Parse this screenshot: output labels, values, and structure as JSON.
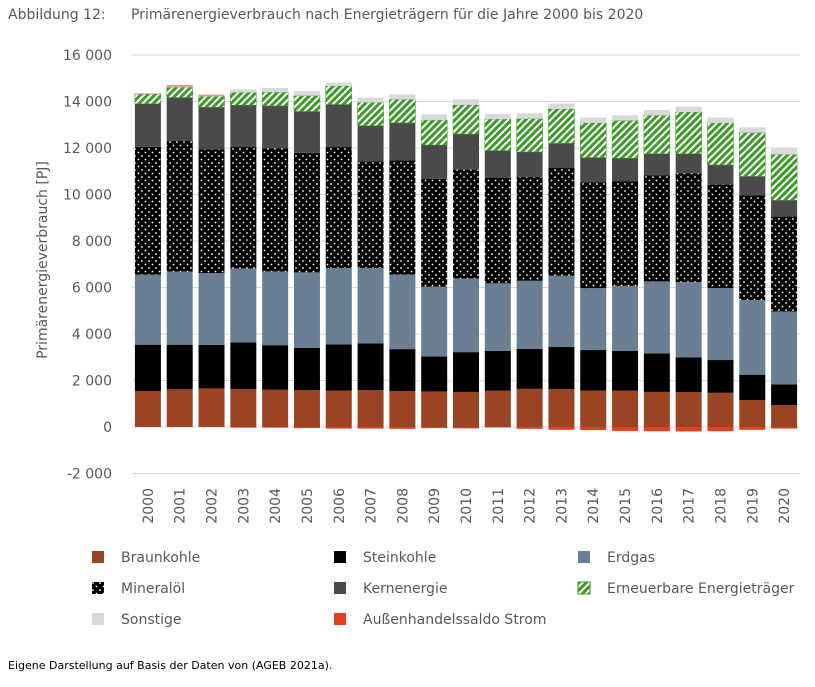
{
  "chart_data": {
    "type": "stacked-bar",
    "figure_label": "Abbildung 12:",
    "title": "Primärenergieverbrauch nach Energieträgern für die Jahre 2000 bis 2020",
    "y_label": "Primärenergieverbrauch [PJ]",
    "source": "Eigene Darstellung auf Basis der Daten von (AGEB 2021a).",
    "categories": [
      "2000",
      "2001",
      "2002",
      "2003",
      "2004",
      "2005",
      "2006",
      "2007",
      "2008",
      "2009",
      "2010",
      "2011",
      "2012",
      "2013",
      "2014",
      "2015",
      "2016",
      "2017",
      "2018",
      "2019",
      "2020"
    ],
    "ylim": [
      -2000,
      16000
    ],
    "yticks": [
      {
        "value": -2000,
        "label": "-2 000"
      },
      0,
      {
        "value": 2000,
        "label": "2 000"
      },
      {
        "value": 4000,
        "label": "4 000"
      },
      {
        "value": 6000,
        "label": "6 000"
      },
      {
        "value": 8000,
        "label": "8 000"
      },
      {
        "value": 10000,
        "label": "10 000"
      },
      {
        "value": 12000,
        "label": "12 000"
      },
      {
        "value": 14000,
        "label": "14 000"
      },
      {
        "value": 16000,
        "label": "16 000"
      }
    ],
    "grid": true,
    "series": [
      {
        "name": "Braunkohle",
        "color": "#9b4423",
        "values": [
          1550,
          1620,
          1660,
          1630,
          1600,
          1590,
          1560,
          1590,
          1550,
          1530,
          1510,
          1560,
          1640,
          1630,
          1570,
          1560,
          1510,
          1500,
          1470,
          1160,
          940
        ]
      },
      {
        "name": "Steinkohle",
        "color": "#000000",
        "values": [
          1990,
          1920,
          1870,
          2010,
          1920,
          1810,
          1990,
          2010,
          1800,
          1500,
          1710,
          1710,
          1720,
          1810,
          1740,
          1720,
          1650,
          1490,
          1410,
          1090,
          890
        ]
      },
      {
        "name": "Erdgas",
        "color": "#6a7f93",
        "values": [
          3010,
          3150,
          3090,
          3180,
          3170,
          3250,
          3290,
          3240,
          3210,
          3010,
          3170,
          2910,
          2930,
          3070,
          2660,
          2790,
          3100,
          3240,
          3100,
          3210,
          3140
        ]
      },
      {
        "name": "Mineralöl",
        "color": "#8c3b7e",
        "pattern": "dots",
        "values": [
          5500,
          5610,
          5330,
          5220,
          5300,
          5140,
          5200,
          4590,
          4900,
          4630,
          4680,
          4530,
          4460,
          4630,
          4560,
          4490,
          4570,
          4690,
          4460,
          4500,
          4080
        ]
      },
      {
        "name": "Kernenergie",
        "color": "#4a4a4a",
        "values": [
          1850,
          1870,
          1800,
          1800,
          1820,
          1780,
          1830,
          1530,
          1620,
          1460,
          1530,
          1180,
          1080,
          1060,
          1060,
          1000,
          920,
          830,
          830,
          820,
          700
        ]
      },
      {
        "name": "Erneuerbare Energieträger",
        "color": "#3e9a2b",
        "pattern": "hatch",
        "values": [
          420,
          440,
          470,
          550,
          590,
          680,
          800,
          1000,
          1010,
          1070,
          1250,
          1350,
          1430,
          1480,
          1490,
          1620,
          1650,
          1800,
          1810,
          1880,
          1970
        ]
      },
      {
        "name": "Sonstige",
        "color": "#d9d9d9",
        "values": [
          30,
          40,
          40,
          130,
          180,
          200,
          150,
          210,
          210,
          240,
          250,
          230,
          230,
          230,
          230,
          230,
          230,
          230,
          230,
          230,
          260
        ]
      },
      {
        "name": "Außenhandelssaldo Strom",
        "color": "#e2401f",
        "values": [
          10,
          40,
          30,
          -30,
          -30,
          -50,
          -70,
          -70,
          -80,
          -50,
          -60,
          -20,
          -80,
          -120,
          -130,
          -170,
          -180,
          -190,
          -180,
          -120,
          -70
        ]
      }
    ]
  }
}
